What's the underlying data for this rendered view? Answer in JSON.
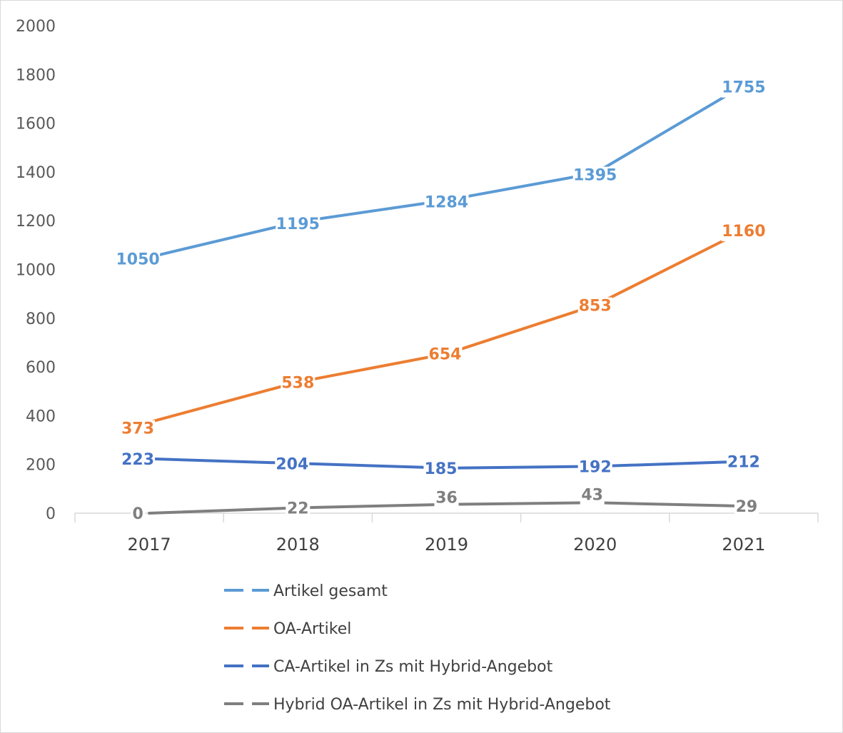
{
  "chart_data": {
    "type": "line",
    "categories": [
      "2017",
      "2018",
      "2019",
      "2020",
      "2021"
    ],
    "ylim": [
      0,
      2000
    ],
    "yticks": [
      0,
      200,
      400,
      600,
      800,
      1000,
      1200,
      1400,
      1600,
      1800,
      2000
    ],
    "grid": false,
    "legend_position": "bottom",
    "series": [
      {
        "name": "Artikel gesamt",
        "color": "#5B9BD5",
        "values": [
          1050,
          1195,
          1284,
          1395,
          1755
        ]
      },
      {
        "name": "OA-Artikel",
        "color": "#ED7D31",
        "values": [
          373,
          538,
          654,
          853,
          1160
        ]
      },
      {
        "name": "CA-Artikel in Zs mit Hybrid-Angebot",
        "color": "#4472C4",
        "values": [
          223,
          204,
          185,
          192,
          212
        ]
      },
      {
        "name": "Hybrid OA-Artikel in Zs mit Hybrid-Angebot",
        "color": "#7F7F7F",
        "values": [
          0,
          22,
          36,
          43,
          29
        ]
      }
    ]
  }
}
